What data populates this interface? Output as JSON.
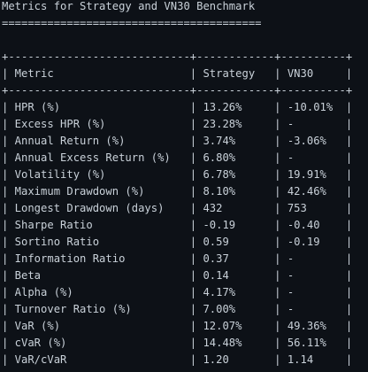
{
  "title": "Metrics for Strategy and VN30 Benchmark",
  "underline": "========================================",
  "table": {
    "border_top": "+----------------------------+------------+----------+",
    "header": "| Metric                     | Strategy   | VN30     |",
    "border_mid": "+----------------------------+------------+----------+",
    "rows": [
      "| HPR (%)                    | 13.26%     | -10.01%  |",
      "| Excess HPR (%)             | 23.28%     | -        |",
      "| Annual Return (%)          | 3.74%      | -3.06%   |",
      "| Annual Excess Return (%)   | 6.80%      | -        |",
      "| Volatility (%)             | 6.78%      | 19.91%   |",
      "| Maximum Drawdown (%)       | 8.10%      | 42.46%   |",
      "| Longest Drawdown (days)    | 432        | 753      |",
      "| Sharpe Ratio               | -0.19      | -0.40    |",
      "| Sortino Ratio              | 0.59       | -0.19    |",
      "| Information Ratio          | 0.37       | -        |",
      "| Beta                       | 0.14       | -        |",
      "| Alpha (%)                  | 4.17%      | -        |",
      "| Turnover Ratio (%)         | 7.00%      | -        |",
      "| VaR (%)                    | 12.07%     | 49.36%   |",
      "| cVaR (%)                   | 14.48%     | 56.11%   |",
      "| VaR/cVaR                   | 1.20       | 1.14     |"
    ],
    "border_bottom": "+----------------------------+------------+----------+"
  }
}
